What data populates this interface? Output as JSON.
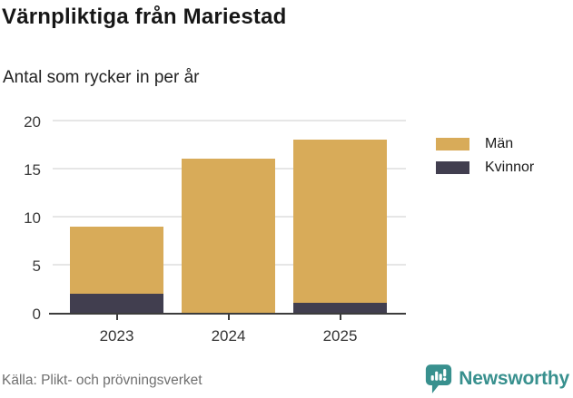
{
  "chart_data": {
    "type": "bar",
    "stacked": true,
    "title": "Värnpliktiga från Mariestad",
    "subtitle": "Antal som rycker in per år",
    "categories": [
      "2023",
      "2024",
      "2025"
    ],
    "series": [
      {
        "name": "Män",
        "color": "#d8ab59",
        "values": [
          7,
          16,
          17
        ]
      },
      {
        "name": "Kvinnor",
        "color": "#413e4f",
        "values": [
          2,
          0,
          1
        ]
      }
    ],
    "totals": [
      9,
      16,
      18
    ],
    "stack_order_bottom_to_top": [
      "Kvinnor",
      "Män"
    ],
    "legend_order": [
      "Män",
      "Kvinnor"
    ],
    "legend_position": "right",
    "xlabel": "",
    "ylabel": "",
    "ylim": [
      0,
      20
    ],
    "yticks": [
      0,
      5,
      10,
      15,
      20
    ],
    "grid": "horizontal",
    "gridline_color": "#e6e6e6",
    "axis_color": "#3c3c3c"
  },
  "footer": {
    "source": "Källa: Plikt- och prövningsverket",
    "brand": "Newsworthy",
    "brand_color": "#38908e"
  }
}
